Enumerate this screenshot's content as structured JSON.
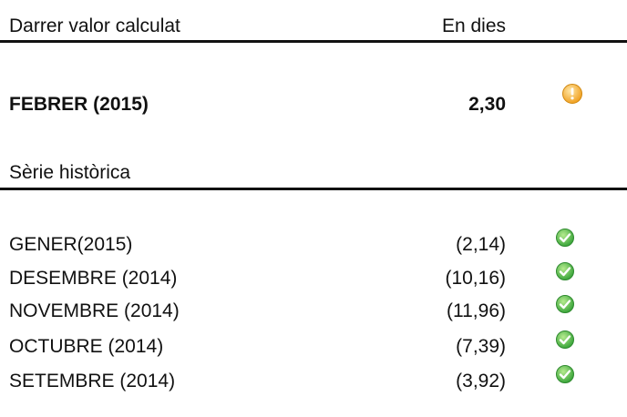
{
  "header": {
    "title": "Darrer valor calculat",
    "unit": "En dies"
  },
  "current": {
    "label": "FEBRER (2015)",
    "value": "2,30"
  },
  "history": {
    "title": "Sèrie històrica",
    "rows": [
      [
        "GENER(2015)",
        "(2,14)"
      ],
      [
        "DESEMBRE (2014)",
        "(10,16)"
      ],
      [
        "NOVEMBRE (2014)",
        "(11,96)"
      ],
      [
        "OCTUBRE (2014)",
        "(7,39)"
      ],
      [
        "SETEMBRE (2014)",
        "(3,92)"
      ]
    ]
  }
}
